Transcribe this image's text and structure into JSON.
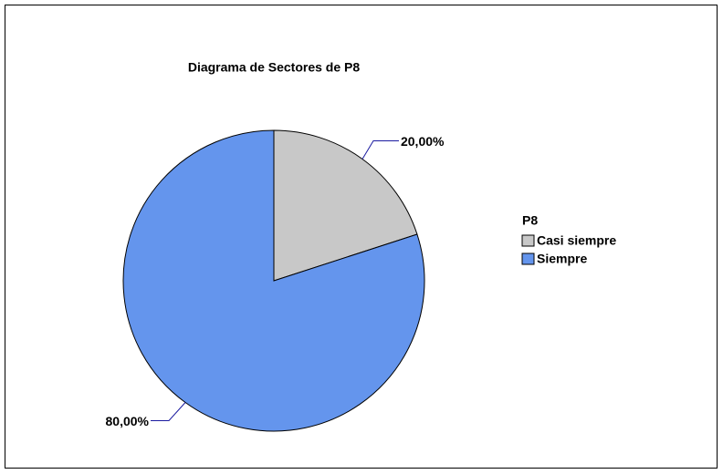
{
  "chart_data": {
    "type": "pie",
    "title": "Diagrama de Sectores de P8",
    "categories": [
      "Casi siempre",
      "Siempre"
    ],
    "values": [
      20,
      80
    ],
    "value_labels": [
      "20,00%",
      "80,00%"
    ],
    "colors": [
      "#c8c8c8",
      "#6495ed"
    ],
    "legend_title": "P8"
  }
}
